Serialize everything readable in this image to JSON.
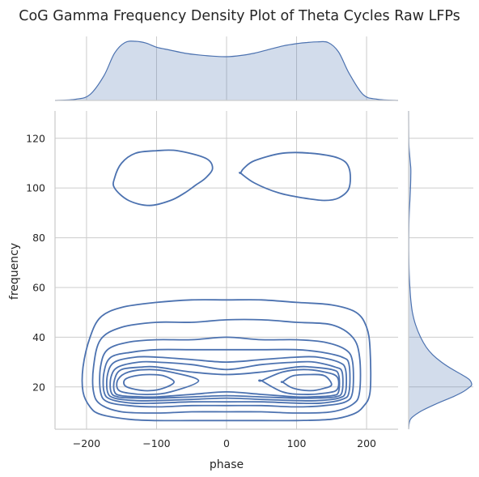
{
  "chart_data": {
    "type": "kde-jointplot",
    "title": "CoG Gamma Frequency Density Plot of Theta Cycles Raw LFPs",
    "xlabel": "phase",
    "ylabel": "frequency",
    "xlim": [
      -245,
      245
    ],
    "ylim": [
      3,
      131
    ],
    "xticks": [
      -200,
      -100,
      0,
      100,
      200
    ],
    "yticks": [
      20,
      40,
      60,
      80,
      100,
      120
    ],
    "xtick_labels": [
      "−200",
      "−100",
      "0",
      "100",
      "200"
    ],
    "ytick_labels": [
      "20",
      "40",
      "60",
      "80",
      "100",
      "120"
    ],
    "grid": true,
    "line_color": "#4c72b0",
    "fill_color": "#4c72b0",
    "marginal_x": {
      "x": [
        -245,
        -215,
        -195,
        -175,
        -160,
        -145,
        -130,
        -115,
        -100,
        -80,
        -60,
        -40,
        -20,
        0,
        20,
        40,
        60,
        80,
        100,
        115,
        130,
        145,
        160,
        175,
        195,
        215,
        245
      ],
      "density": [
        0.0,
        0.02,
        0.1,
        0.42,
        0.8,
        0.98,
        1.0,
        0.97,
        0.9,
        0.85,
        0.8,
        0.77,
        0.75,
        0.74,
        0.76,
        0.8,
        0.86,
        0.92,
        0.96,
        0.98,
        0.99,
        0.98,
        0.82,
        0.46,
        0.1,
        0.02,
        0.0
      ]
    },
    "marginal_y": {
      "y": [
        3,
        7,
        10,
        13,
        16,
        18,
        20,
        21,
        23,
        25,
        27,
        30,
        33,
        36,
        40,
        45,
        50,
        55,
        60,
        65,
        70,
        75,
        80,
        85,
        90,
        95,
        100,
        105,
        108,
        112,
        116,
        120,
        131
      ],
      "density": [
        0.0,
        0.03,
        0.18,
        0.42,
        0.7,
        0.86,
        0.97,
        1.0,
        0.96,
        0.84,
        0.7,
        0.52,
        0.38,
        0.28,
        0.19,
        0.11,
        0.06,
        0.035,
        0.02,
        0.01,
        0.005,
        0.003,
        0.003,
        0.005,
        0.01,
        0.02,
        0.03,
        0.035,
        0.035,
        0.02,
        0.008,
        0.002,
        0.0
      ]
    },
    "contours": [
      {
        "name": "upper-left",
        "x": [
          -160,
          -140,
          -110,
          -80,
          -60,
          -45,
          -30,
          -20,
          -30,
          -70,
          -100,
          -130,
          -150,
          -160
        ],
        "y": [
          100,
          95,
          93,
          95,
          98,
          101,
          104,
          108,
          112,
          115,
          115,
          114,
          110,
          104
        ]
      },
      {
        "name": "upper-right",
        "x": [
          20,
          40,
          75,
          110,
          140,
          160,
          175,
          175,
          160,
          120,
          80,
          40,
          25,
          20
        ],
        "y": [
          106,
          102,
          98,
          96,
          95,
          96,
          100,
          108,
          112,
          114,
          114,
          111,
          108,
          106
        ]
      },
      {
        "name": "level-1",
        "x": [
          -205,
          -195,
          -180,
          -140,
          -100,
          -50,
          0,
          50,
          100,
          150,
          180,
          195,
          205,
          205,
          200,
          185,
          150,
          100,
          50,
          0,
          -50,
          -100,
          -150,
          -180,
          -195,
          -205
        ],
        "y": [
          18,
          12,
          9,
          7,
          6.5,
          6.5,
          6.5,
          6.5,
          6.5,
          7,
          9,
          12,
          18,
          35,
          44,
          50,
          53,
          54,
          55,
          55,
          55,
          54,
          52,
          48,
          40,
          28
        ]
      },
      {
        "name": "level-2",
        "x": [
          -190,
          -180,
          -150,
          -100,
          -50,
          0,
          50,
          100,
          150,
          180,
          190,
          190,
          180,
          150,
          100,
          50,
          0,
          -50,
          -100,
          -150,
          -180,
          -190
        ],
        "y": [
          18,
          13,
          10,
          9.5,
          10,
          10,
          10,
          9.5,
          10,
          13,
          18,
          32,
          40,
          45,
          46,
          47,
          47,
          46,
          46,
          44,
          39,
          28
        ]
      },
      {
        "name": "level-3",
        "x": [
          -180,
          -170,
          -140,
          -100,
          -50,
          0,
          50,
          100,
          140,
          170,
          180,
          180,
          170,
          140,
          100,
          50,
          0,
          -50,
          -100,
          -140,
          -170,
          -180
        ],
        "y": [
          18,
          14,
          12.5,
          12,
          12.5,
          12.5,
          12.5,
          12,
          12.5,
          14,
          18,
          30,
          35,
          38,
          39,
          39,
          40,
          39,
          39,
          38,
          35,
          28
        ]
      },
      {
        "name": "level-4",
        "x": [
          -175,
          -165,
          -135,
          -100,
          -50,
          0,
          50,
          100,
          135,
          165,
          175,
          175,
          165,
          135,
          100,
          50,
          0,
          -50,
          -100,
          -135,
          -165,
          -175
        ],
        "y": [
          18,
          15,
          13.5,
          13.5,
          14,
          14,
          14,
          13.5,
          13.5,
          15,
          18,
          29,
          32,
          34,
          35,
          35,
          35,
          35,
          35,
          34,
          32,
          26
        ]
      },
      {
        "name": "level-5",
        "x": [
          -170,
          -160,
          -130,
          -100,
          -50,
          0,
          50,
          100,
          130,
          160,
          170,
          170,
          160,
          130,
          100,
          50,
          0,
          -50,
          -100,
          -130,
          -160,
          -170
        ],
        "y": [
          18,
          15.5,
          14.5,
          14.5,
          15,
          15.5,
          15,
          14.5,
          14.5,
          15.5,
          18,
          27,
          30,
          32,
          32,
          31,
          30,
          31,
          32,
          32,
          30,
          25
        ]
      },
      {
        "name": "level-6",
        "x": [
          -165,
          -155,
          -125,
          -100,
          -50,
          0,
          50,
          100,
          125,
          155,
          165,
          165,
          155,
          125,
          100,
          50,
          0,
          -50,
          -100,
          -125,
          -155,
          -165
        ],
        "y": [
          18,
          16,
          15.5,
          15.5,
          16,
          16.5,
          16,
          15.5,
          15.5,
          16,
          18,
          26,
          28,
          30,
          30,
          29,
          27,
          29,
          30,
          30,
          28,
          24
        ]
      },
      {
        "name": "level-7",
        "x": [
          -160,
          -150,
          -120,
          -100,
          -50,
          0,
          50,
          100,
          120,
          150,
          160,
          160,
          150,
          120,
          100,
          50,
          0,
          -50,
          -100,
          -120,
          -150,
          -160
        ],
        "y": [
          18,
          16.5,
          16,
          16,
          17,
          18,
          17,
          16,
          16,
          16.5,
          18,
          25,
          27,
          28,
          28,
          26,
          25,
          26,
          28,
          28,
          27,
          23
        ]
      },
      {
        "name": "inner-left",
        "x": [
          -155,
          -140,
          -110,
          -80,
          -40,
          -80,
          -110,
          -140,
          -155
        ],
        "y": [
          19,
          17.5,
          17,
          18,
          22.5,
          26,
          27,
          26,
          23
        ]
      },
      {
        "name": "inner-right",
        "x": [
          50,
          80,
          110,
          140,
          158,
          158,
          140,
          110,
          80,
          50
        ],
        "y": [
          22.5,
          18,
          17,
          17.5,
          19,
          24,
          26,
          27,
          26,
          22.5
        ]
      },
      {
        "name": "core-left",
        "x": [
          -145,
          -130,
          -110,
          -90,
          -75,
          -90,
          -110,
          -130,
          -145
        ],
        "y": [
          20.5,
          19,
          18.5,
          19.5,
          22,
          24.5,
          25,
          24.5,
          23
        ]
      },
      {
        "name": "core-right",
        "x": [
          80,
          95,
          120,
          140,
          150,
          140,
          120,
          95,
          80
        ],
        "y": [
          22,
          19.5,
          18.5,
          19.5,
          21,
          24.5,
          25,
          24.5,
          22
        ]
      }
    ]
  }
}
